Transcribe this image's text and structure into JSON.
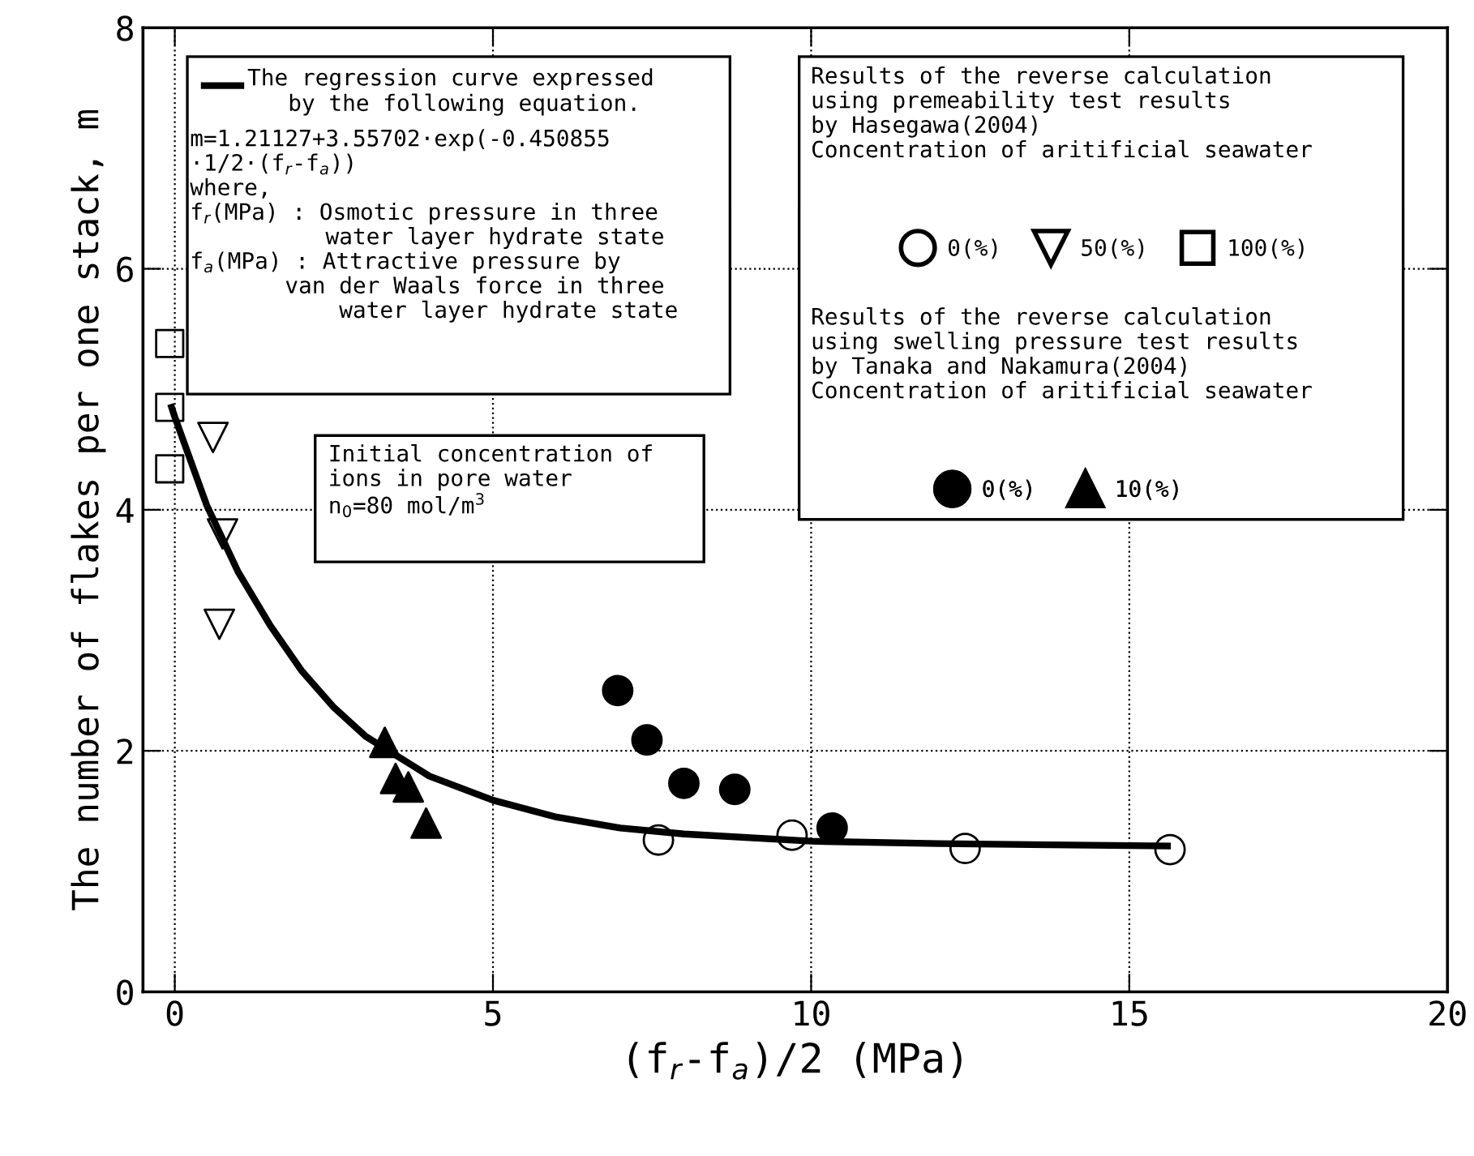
{
  "chart_data": {
    "type": "scatter",
    "xlabel": "(f$_{r}$-f$_{a}$)/2 (MPa)",
    "ylabel": "The number of flakes per one stack, m",
    "xlim": [
      -0.5,
      20
    ],
    "xticks": [
      0,
      5,
      10,
      15,
      20
    ],
    "ylim": [
      0,
      8
    ],
    "yticks": [
      0,
      2,
      4,
      6,
      8
    ],
    "grid": true,
    "legend": "top right",
    "series": [
      {
        "name": "The regression curve expressed\n   by the following equation.",
        "type": "line",
        "color": "#000000",
        "marker": "none",
        "line_style": "solid",
        "x": [
          -0.05,
          0,
          0.5,
          1,
          1.5,
          2,
          2.5,
          3,
          4,
          5,
          6,
          7,
          8,
          10,
          12,
          15.6
        ],
        "values": [
          4.85,
          4.77,
          4.04,
          3.48,
          3.04,
          2.66,
          2.36,
          2.12,
          1.79,
          1.59,
          1.45,
          1.36,
          1.31,
          1.25,
          1.23,
          1.21
        ]
      },
      {
        "name": "0(%)",
        "color": "#000000",
        "marker": "circle",
        "x": [
          7.6,
          9.7,
          12.42,
          15.64
        ],
        "values": [
          1.26,
          1.3,
          1.19,
          1.18
        ]
      },
      {
        "name": "50(%)",
        "color": "#000000",
        "marker": "triangle_down",
        "x": [
          0.6,
          0.75,
          0.7
        ],
        "values": [
          4.6,
          3.8,
          3.05
        ]
      },
      {
        "name": "100(%)",
        "color": "#000000",
        "marker": "square",
        "x": [
          -0.08,
          -0.08,
          -0.08
        ],
        "values": [
          5.38,
          4.85,
          4.34
        ]
      },
      {
        "name": "0(%)",
        "color": "#000000",
        "marker": "circle",
        "x": [
          6.96,
          7.42,
          8.0,
          8.8,
          10.33
        ],
        "values": [
          2.5,
          2.09,
          1.73,
          1.68,
          1.36
        ]
      },
      {
        "name": "10(%)",
        "color": "#000000",
        "marker": "triangle",
        "x": [
          3.3,
          3.47,
          3.67,
          3.95
        ],
        "values": [
          2.07,
          1.77,
          1.7,
          1.4
        ]
      }
    ],
    "annotations": [
      "m=1.21127+3.55702·exp(-0.450855\n·1/2·(f$_{r}$-f$_{a}$))\nwhere,\nf$_{r}$(MPa) : Osmotic pressure in three\n          water layer hydrate state\nf$_{a}$(MPa) : Attractive pressure by\n       van der Waals force in three\n           water layer hydrate state",
      "Initial concentration of\nions in pore water\nn$_{0}$=80 mol/m$^{3}$",
      "Results of the reverse calculation\nusing premeability test results\nby Hasegawa(2004)\nConcentration of aritificial seawater",
      "Results of the reverse calculation\nusing swelling pressure test results\nby Tanaka and Nakamura(2004)\nConcentration of aritificial seawater"
    ]
  }
}
